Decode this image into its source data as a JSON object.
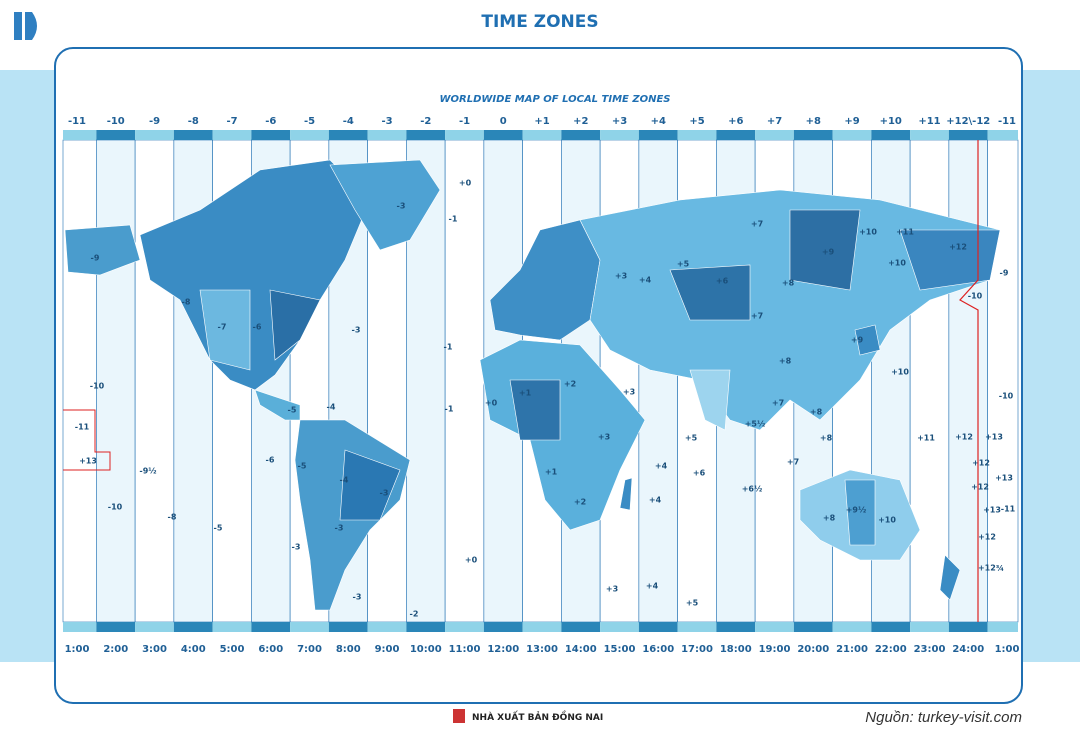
{
  "header": {
    "title": "TIME ZONES",
    "subtitle": "WORLDWIDE MAP OF LOCAL TIME ZONES"
  },
  "offsets": [
    "-11",
    "-10",
    "-9",
    "-8",
    "-7",
    "-6",
    "-5",
    "-4",
    "-3",
    "-2",
    "-1",
    "0",
    "+1",
    "+2",
    "+3",
    "+4",
    "+5",
    "+6",
    "+7",
    "+8",
    "+9",
    "+10",
    "+11",
    "+12\\-12",
    "-11"
  ],
  "times": [
    "1:00",
    "2:00",
    "3:00",
    "4:00",
    "5:00",
    "6:00",
    "7:00",
    "8:00",
    "9:00",
    "10:00",
    "11:00",
    "12:00",
    "13:00",
    "14:00",
    "15:00",
    "16:00",
    "17:00",
    "18:00",
    "19:00",
    "20:00",
    "21:00",
    "22:00",
    "23:00",
    "24:00",
    "1:00"
  ],
  "zone_labels": [
    "-10",
    "-11",
    "+13",
    "-9½",
    "-10",
    "-8",
    "-5",
    "-6",
    "-5",
    "-4",
    "-5",
    "-4",
    "-3",
    "-3",
    "-3",
    "-3",
    "-2",
    "-3",
    "-3",
    "-1",
    "+0",
    "-1",
    "-1",
    "+0",
    "+0",
    "+1",
    "+1",
    "+2",
    "+2",
    "+3",
    "+3",
    "+3",
    "+4",
    "+5",
    "+6",
    "+7",
    "+9",
    "+10",
    "+11",
    "+12",
    "+10",
    "+8",
    "+7",
    "+8",
    "+9",
    "+10",
    "+7",
    "+8",
    "+8",
    "+7",
    "+6",
    "+5",
    "+4",
    "+4",
    "+3",
    "+4",
    "+5",
    "+6½",
    "+5½",
    "+8",
    "+9½",
    "+10",
    "+11",
    "+12",
    "+13",
    "+12",
    "+12",
    "+13",
    "+13",
    "-11",
    "+12",
    "+12¾",
    "-10",
    "-9",
    "-10",
    "-9",
    "-8",
    "-7",
    "-6"
  ],
  "footer": {
    "publisher": "NHÀ XUẤT BẢN ĐỒNG NAI",
    "source": "Nguồn: turkey-visit.com"
  }
}
